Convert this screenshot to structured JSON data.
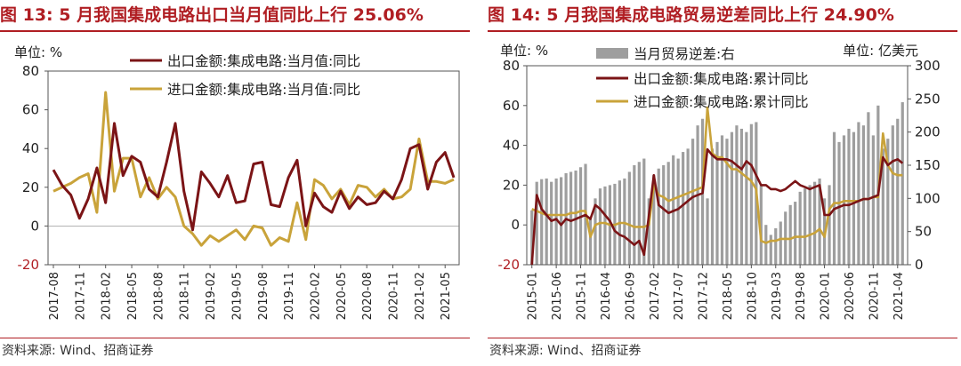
{
  "chart_data": [
    {
      "type": "line",
      "title": "图 13:  5 月我国集成电路出口当月值同比上行 25.06%",
      "unit_label": "单位:  %",
      "source": "资料来源:  Wind、招商证券",
      "ylim": [
        -20,
        80
      ],
      "y_ticks": [
        -20,
        0,
        20,
        40,
        60,
        80
      ],
      "x_tick_labels": [
        "2017-08",
        "2017-11",
        "2018-02",
        "2018-05",
        "2018-08",
        "2018-11",
        "2019-02",
        "2019-05",
        "2019-08",
        "2019-11",
        "2020-02",
        "2020-05",
        "2020-08",
        "2020-11",
        "2021-02",
        "2021-05"
      ],
      "series": [
        {
          "name": "出口金额:集成电路:当月值:同比",
          "color": "#7b1416",
          "values": [
            29,
            21,
            16,
            4,
            14,
            30,
            12,
            53,
            26,
            36,
            33,
            19,
            15,
            33,
            53,
            18,
            -2,
            28,
            22,
            15,
            26,
            12,
            13,
            32,
            33,
            11,
            10,
            25,
            34,
            0,
            17,
            10,
            7,
            18,
            9,
            15,
            11,
            12,
            18,
            14,
            24,
            40,
            42,
            19,
            33,
            38,
            25
          ]
        },
        {
          "name": "进口金额:集成电路:当月值:同比",
          "color": "#c9a33a",
          "values": [
            18,
            20,
            22,
            25,
            27,
            7,
            69,
            18,
            35,
            35,
            15,
            25,
            14,
            20,
            15,
            0,
            -4,
            -10,
            -5,
            -8,
            -5,
            -2,
            -7,
            0,
            -1,
            -10,
            -6,
            -8,
            12,
            -7,
            24,
            21,
            14,
            19,
            11,
            21,
            20,
            15,
            19,
            14,
            15,
            19,
            45,
            23,
            23,
            22,
            24
          ]
        }
      ]
    },
    {
      "type": "bar+line",
      "title": "图 14:  5 月我国集成电路贸易逆差同比上行 24.90%",
      "unit_label_left": "单位:  %",
      "unit_label_right": "单位:  亿美元",
      "source": "资料来源:  Wind、招商证券",
      "ylim_left": [
        -20,
        80
      ],
      "y_ticks_left": [
        -20,
        0,
        20,
        40,
        60,
        80
      ],
      "ylim_right": [
        0,
        300
      ],
      "y_ticks_right": [
        0,
        50,
        100,
        150,
        200,
        250,
        300
      ],
      "x_tick_labels": [
        "2015-01",
        "2015-06",
        "2015-11",
        "2016-04",
        "2016-09",
        "2017-02",
        "2017-07",
        "2017-12",
        "2018-05",
        "2018-10",
        "2019-03",
        "2019-08",
        "2020-01",
        "2020-06",
        "2020-11",
        "2021-04"
      ],
      "bars": {
        "name": "当月贸易逆差:右",
        "color": "#9e9e9e",
        "values": [
          82,
          125,
          129,
          130,
          125,
          130,
          132,
          138,
          140,
          142,
          147,
          152,
          70,
          100,
          115,
          118,
          120,
          122,
          127,
          130,
          140,
          150,
          155,
          160,
          100,
          135,
          145,
          150,
          155,
          165,
          160,
          170,
          175,
          190,
          210,
          220,
          100,
          175,
          185,
          195,
          190,
          200,
          210,
          205,
          200,
          212,
          215,
          120,
          60,
          45,
          55,
          65,
          80,
          90,
          95,
          110,
          115,
          120,
          125,
          130,
          100,
          120,
          200,
          185,
          195,
          205,
          200,
          215,
          210,
          230,
          195,
          240,
          175,
          190,
          210,
          220,
          245
        ]
      },
      "series": [
        {
          "name": "出口金额:集成电路:累计同比",
          "color": "#7b1416",
          "values": [
            -20,
            15,
            8,
            5,
            2,
            3,
            0,
            3,
            2,
            3,
            4,
            5,
            3,
            10,
            8,
            5,
            2,
            -3,
            -5,
            -6,
            -8,
            -10,
            -8,
            -15,
            5,
            25,
            10,
            8,
            6,
            7,
            8,
            10,
            12,
            14,
            15,
            16,
            38,
            35,
            33,
            33,
            33,
            32,
            30,
            28,
            32,
            30,
            25,
            20,
            20,
            18,
            18,
            17,
            18,
            20,
            22,
            20,
            19,
            18,
            19,
            20,
            5,
            5,
            8,
            9,
            10,
            10,
            11,
            12,
            13,
            13,
            14,
            15,
            34,
            30,
            32,
            33,
            31
          ]
        },
        {
          "name": "进口金额:集成电路:累计同比",
          "color": "#c9a33a",
          "values": [
            8,
            7,
            6,
            5,
            5,
            5,
            5,
            5,
            6,
            6,
            7,
            7,
            -6,
            0,
            1,
            1,
            0,
            0,
            1,
            1,
            0,
            -1,
            -1,
            -1,
            0,
            20,
            15,
            14,
            12,
            13,
            14,
            15,
            16,
            17,
            18,
            19,
            59,
            36,
            34,
            34,
            31,
            28,
            28,
            26,
            24,
            22,
            18,
            -8,
            -9,
            -8,
            -8,
            -7,
            -7,
            -7,
            -6,
            -6,
            -6,
            -5,
            -4,
            -2,
            -6,
            8,
            11,
            11,
            12,
            12,
            12,
            12,
            13,
            13,
            14,
            14,
            46,
            30,
            26,
            25,
            25
          ]
        }
      ]
    }
  ]
}
